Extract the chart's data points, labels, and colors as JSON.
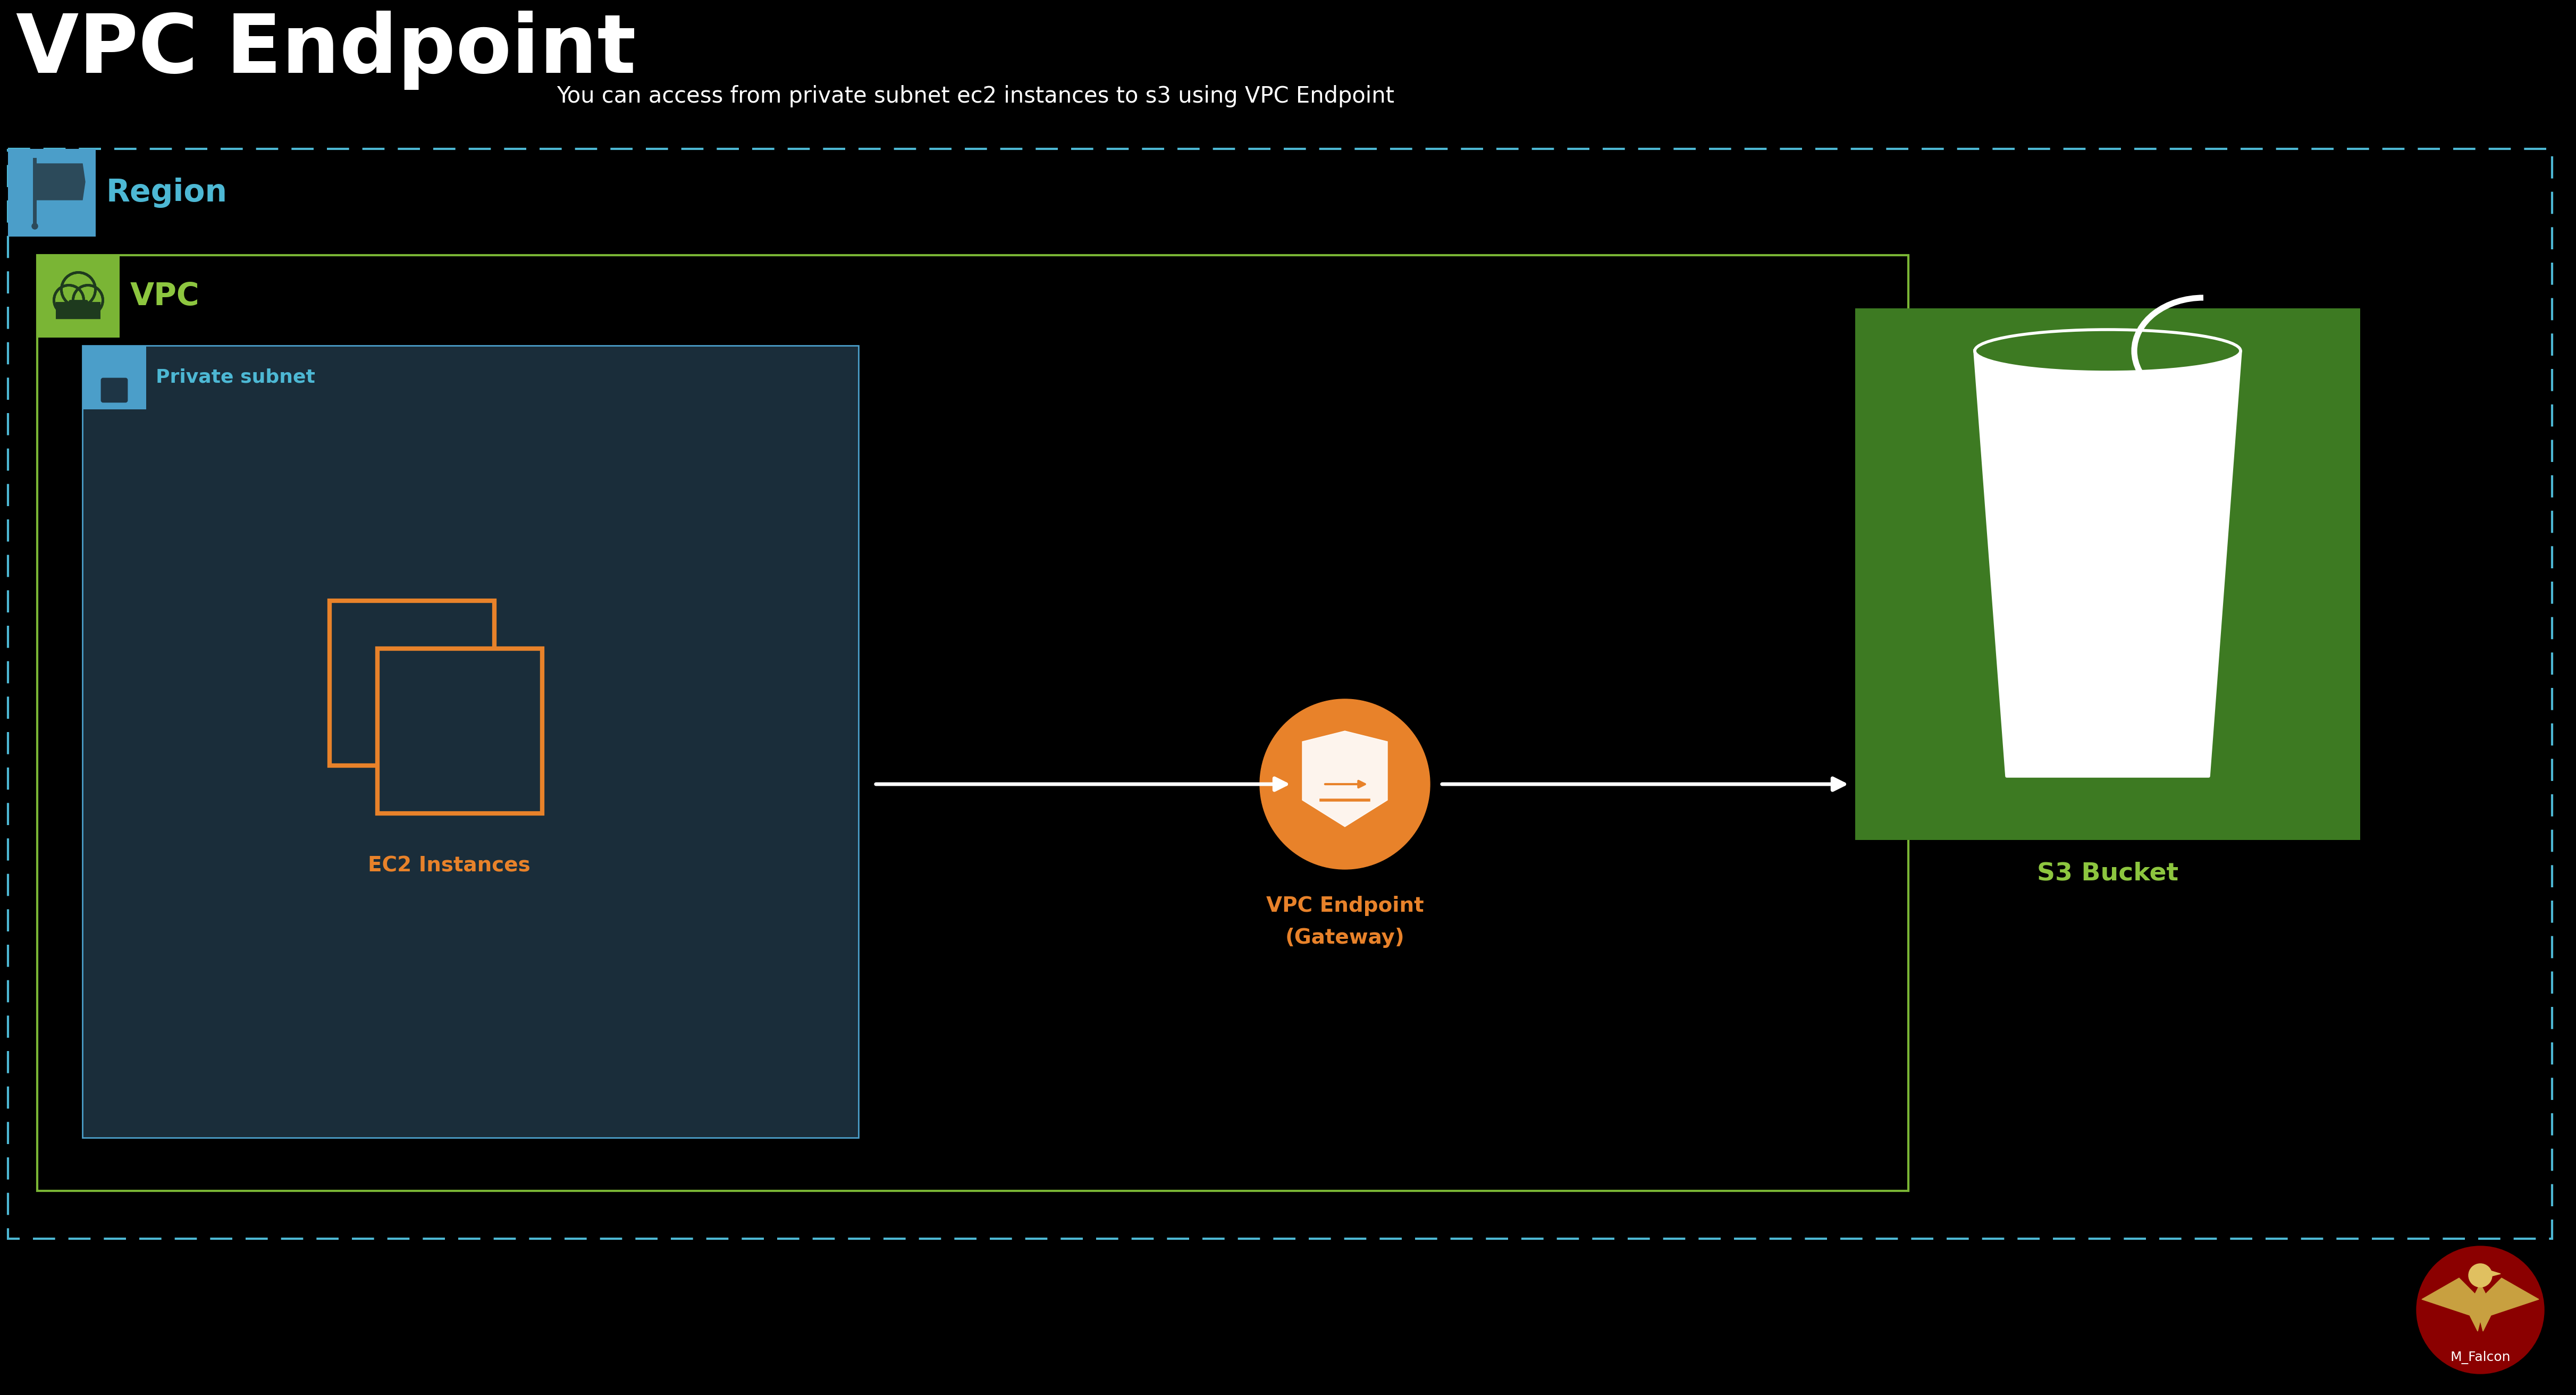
{
  "bg_color": "#000000",
  "title": "VPC Endpoint",
  "title_color": "#ffffff",
  "title_fontsize": 110,
  "subtitle": "You can access from private subnet ec2 instances to s3 using VPC Endpoint",
  "subtitle_color": "#ffffff",
  "subtitle_fontsize": 30,
  "region_label": "Region",
  "region_label_color": "#4db8d4",
  "region_label_fontsize": 42,
  "vpc_label": "VPC",
  "vpc_label_color": "#8dc63f",
  "vpc_label_fontsize": 42,
  "private_subnet_label": "Private subnet",
  "private_subnet_label_color": "#4db8d4",
  "private_subnet_label_fontsize": 26,
  "ec2_label": "EC2 Instances",
  "ec2_label_color": "#e8822a",
  "ec2_label_fontsize": 28,
  "endpoint_label_line1": "VPC Endpoint",
  "endpoint_label_line2": "(Gateway)",
  "endpoint_label_color": "#e8822a",
  "endpoint_label_fontsize": 28,
  "s3_label": "S3 Bucket",
  "s3_label_color": "#8dc63f",
  "s3_label_fontsize": 34,
  "region_icon_color": "#4b9ec9",
  "region_icon_dark": "#2c4a5a",
  "vpc_icon_color": "#7ab535",
  "vpc_icon_dark": "#1e3a1e",
  "private_subnet_icon_color": "#4b9ec9",
  "private_subnet_icon_dark": "#1e3545",
  "region_border_color": "#4db8d4",
  "vpc_border_color": "#7ab535",
  "private_subnet_bg": "#1a2d3a",
  "endpoint_circle_color": "#e8822a",
  "s3_box_color": "#3d7a22",
  "arrow_color": "#ffffff",
  "falcon_bg": "#8b0000",
  "falcon_text": "M_Falcon"
}
